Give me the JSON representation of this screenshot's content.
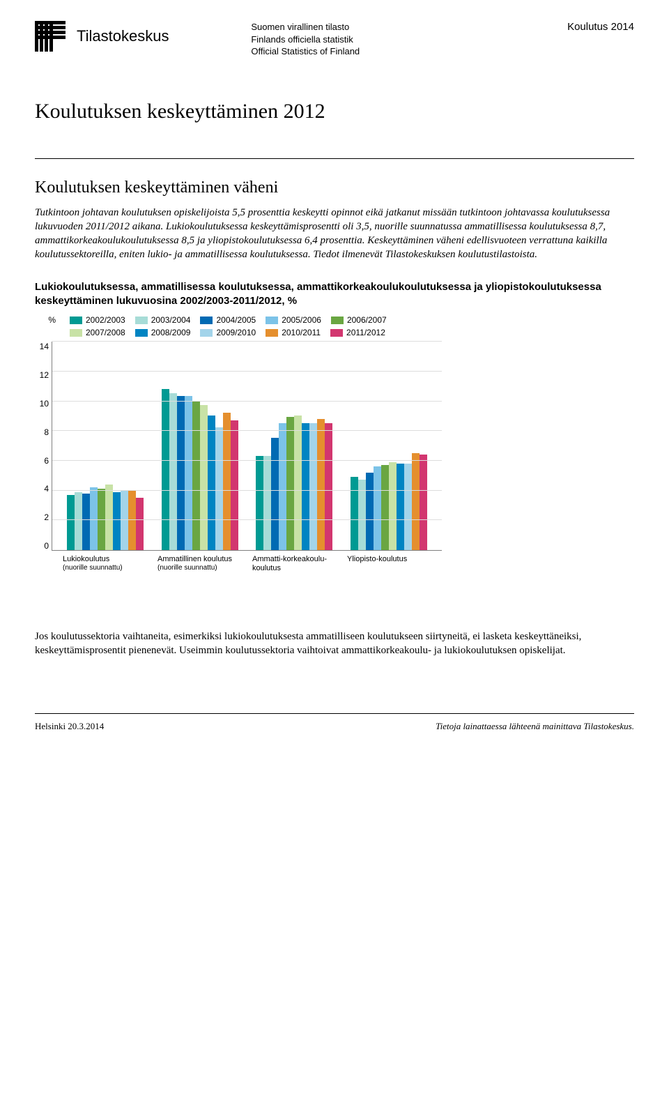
{
  "header": {
    "org": "Tilastokeskus",
    "tagline1": "Suomen virallinen tilasto",
    "tagline2": "Finlands officiella statistik",
    "tagline3": "Official Statistics of Finland",
    "topic": "Koulutus 2014"
  },
  "title": "Koulutuksen keskeyttäminen 2012",
  "subtitle": "Koulutuksen keskeyttäminen väheni",
  "para1": "Tutkintoon johtavan koulutuksen opiskelijoista 5,5 prosenttia keskeytti opinnot eikä jatkanut missään tutkintoon johtavassa koulutuksessa lukuvuoden 2011/2012 aikana. Lukiokoulutuksessa keskeyttämisprosentti oli 3,5, nuorille suunnatussa ammatillisessa koulutuksessa 8,7, ammattikorkeakoulukoulutuksessa 8,5 ja yliopistokoulutuksessa 6,4 prosenttia. Keskeyttäminen väheni edellisvuoteen verrattuna kaikilla koulutussektoreilla, eniten lukio- ja ammatillisessa koulutuksessa. Tiedot ilmenevät Tilastokeskuksen koulutustilastoista.",
  "para2": "Lukiokoulutuksessa, ammatillisessa koulutuksessa, ammattikorkeakoulukoulutuksessa ja yliopistokoulutuksessa keskeyttäminen lukuvuosina 2002/2003-2011/2012, %",
  "chart": {
    "type": "bar",
    "y_label": "%",
    "y_max": 14,
    "y_ticks": [
      14,
      12,
      10,
      8,
      6,
      4,
      2,
      0
    ],
    "grid_color": "#dddddd",
    "axis_color": "#808080",
    "series": [
      {
        "label": "2002/2003",
        "color": "#009a93"
      },
      {
        "label": "2003/2004",
        "color": "#a7dcd7"
      },
      {
        "label": "2004/2005",
        "color": "#006ab3"
      },
      {
        "label": "2005/2006",
        "color": "#7cc3e8"
      },
      {
        "label": "2006/2007",
        "color": "#6aa642"
      },
      {
        "label": "2007/2008",
        "color": "#c8e2a6"
      },
      {
        "label": "2008/2009",
        "color": "#0084c2"
      },
      {
        "label": "2009/2010",
        "color": "#a3d4ea"
      },
      {
        "label": "2010/2011",
        "color": "#e58f2e"
      },
      {
        "label": "2011/2012",
        "color": "#d2366f"
      }
    ],
    "categories": [
      {
        "label": "Lukiokoulutus",
        "sub": "(nuorille suunnattu)",
        "values": [
          3.7,
          3.9,
          3.8,
          4.2,
          4.1,
          4.4,
          3.9,
          4.0,
          4.0,
          3.5
        ]
      },
      {
        "label": "Ammatillinen koulutus",
        "sub": "(nuorille suunnattu)",
        "values": [
          10.8,
          10.5,
          10.3,
          10.3,
          10.0,
          9.7,
          9.0,
          8.2,
          9.2,
          8.7
        ]
      },
      {
        "label": "Ammatti-korkeakoulu-koulutus",
        "sub": "",
        "values": [
          6.3,
          6.3,
          7.5,
          8.5,
          8.9,
          9.0,
          8.5,
          8.5,
          8.8,
          8.5
        ]
      },
      {
        "label": "Yliopisto-koulutus",
        "sub": "",
        "values": [
          4.9,
          4.7,
          5.2,
          5.6,
          5.7,
          5.9,
          5.8,
          5.8,
          6.5,
          6.4
        ]
      }
    ]
  },
  "para3": "Jos koulutussektoria vaihtaneita, esimerkiksi lukiokoulutuksesta ammatilliseen koulutukseen siirtyneitä, ei lasketa keskeyttäneiksi, keskeyttämisprosentit pienenevät. Useimmin koulutussektoria vaihtoivat ammattikorkeakoulu- ja lukiokoulutuksen opiskelijat.",
  "footer": {
    "left": "Helsinki 20.3.2014",
    "right": "Tietoja lainattaessa lähteenä mainittava Tilastokeskus."
  }
}
